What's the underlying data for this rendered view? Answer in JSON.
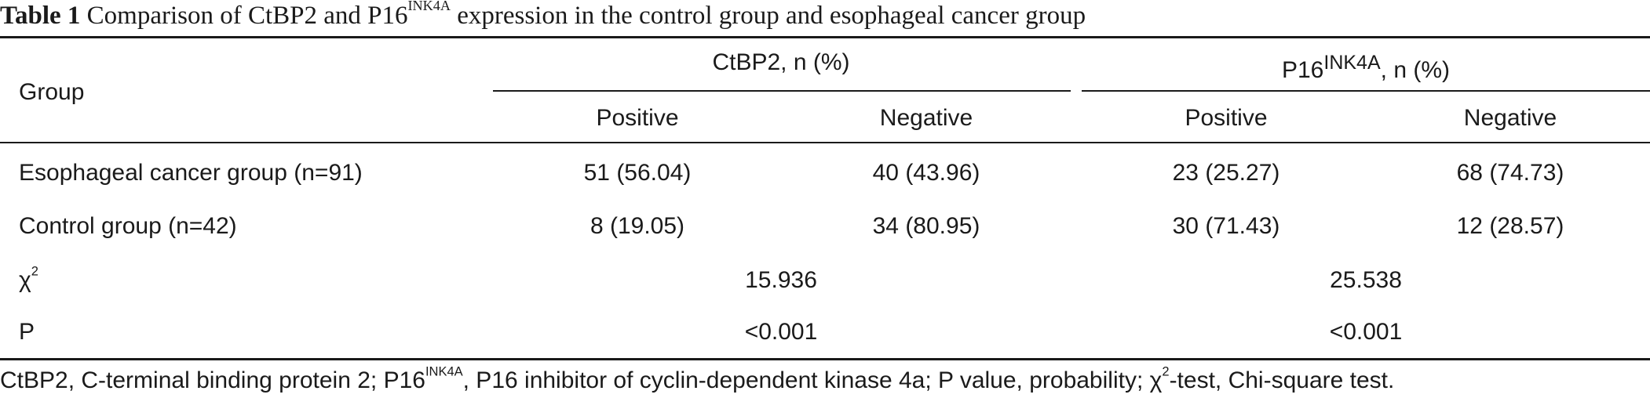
{
  "caption": {
    "label": "Table 1",
    "text_part1": "Comparison of CtBP2 and P16",
    "superscript": "INK4A",
    "text_part2": " expression in the control group and esophageal cancer group"
  },
  "table": {
    "group_header": "Group",
    "ctbp2_header": "CtBP2, n (%)",
    "p16_header_base": "P16",
    "p16_header_sup": "INK4A",
    "p16_header_suffix": ", n (%)",
    "subheaders": [
      "Positive",
      "Negative",
      "Positive",
      "Negative"
    ],
    "rows": [
      {
        "group": "Esophageal cancer group (n=91)",
        "values": [
          "51 (56.04)",
          "40 (43.96)",
          "23 (25.27)",
          "68 (74.73)"
        ]
      },
      {
        "group": "Control group (n=42)",
        "values": [
          "8 (19.05)",
          "34 (80.95)",
          "30 (71.43)",
          "12 (28.57)"
        ]
      }
    ],
    "chi_label_base": "χ",
    "chi_label_sup": "2",
    "chi_values": [
      "15.936",
      "25.538"
    ],
    "p_label": "P",
    "p_values": [
      "<0.001",
      "<0.001"
    ]
  },
  "footnote": {
    "part1": "CtBP2, C-terminal binding protein 2; P16",
    "sup1": "INK4A",
    "part2": ", P16 inhibitor of cyclin-dependent kinase 4a; P value, probability; χ",
    "sup2": "2",
    "part3": "-test, Chi-square test."
  }
}
